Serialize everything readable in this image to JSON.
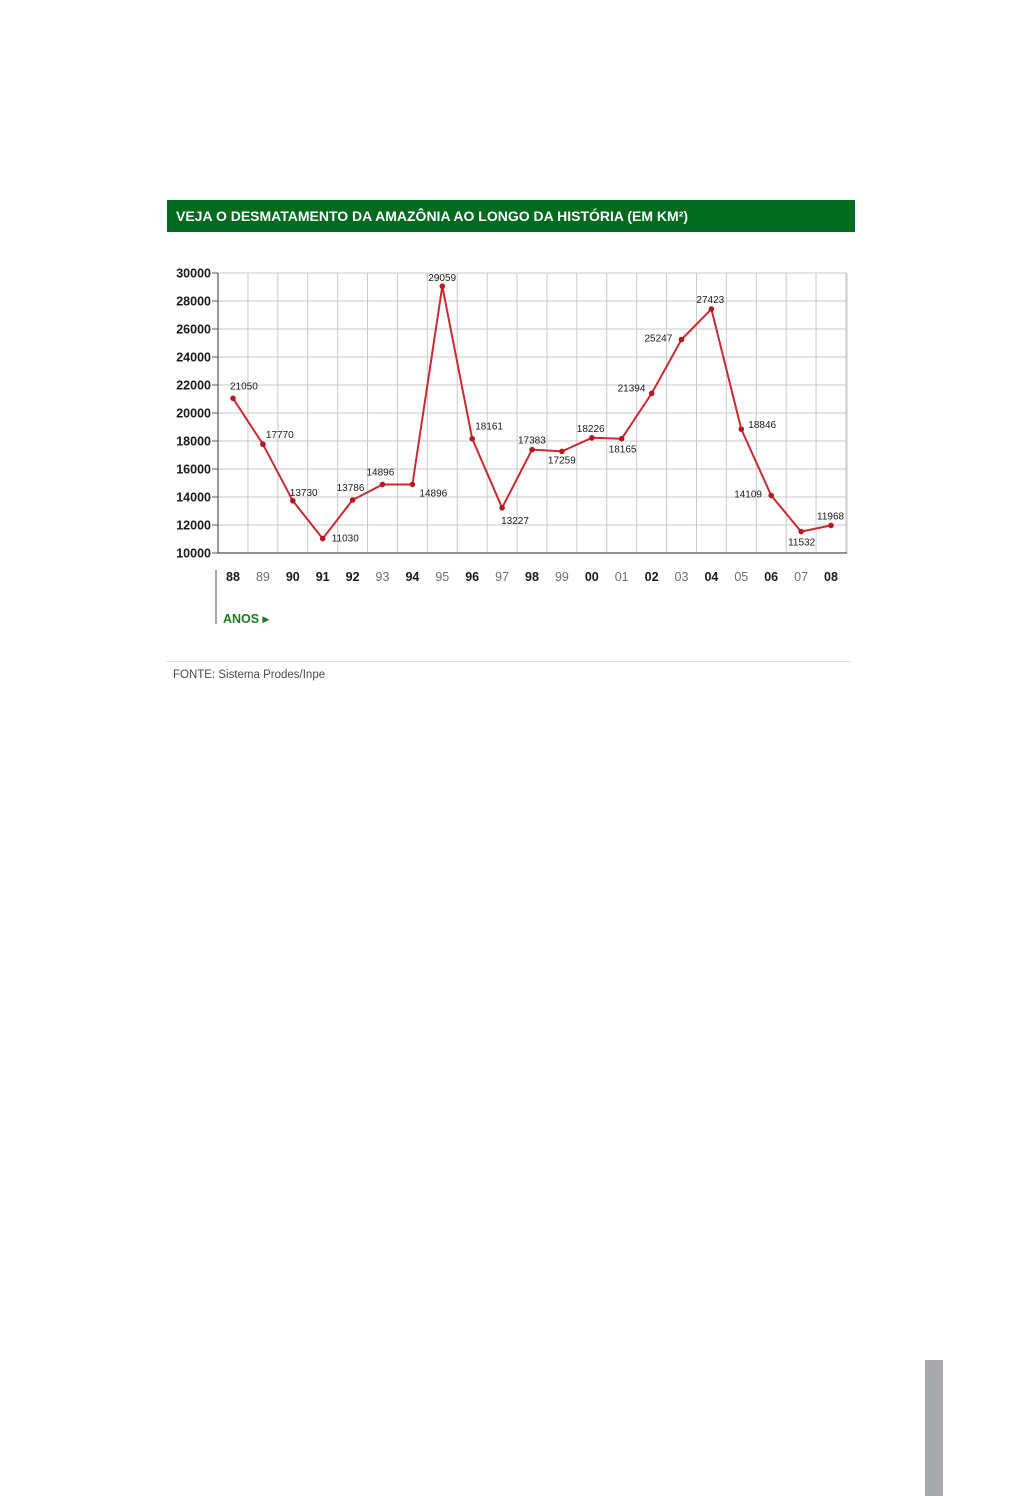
{
  "title": "VEJA O DESMATAMENTO DA AMAZÔNIA AO LONGO DA HISTÓRIA (EM KM²)",
  "source": "FONTE: Sistema Prodes/Inpe",
  "chart_data": {
    "type": "line",
    "title": "VEJA O DESMATAMENTO DA AMAZÔNIA AO LONGO DA HISTÓRIA (EM KM²)",
    "xlabel": "ANOS ▸",
    "ylabel": "",
    "categories": [
      "88",
      "89",
      "90",
      "91",
      "92",
      "93",
      "94",
      "95",
      "96",
      "97",
      "98",
      "99",
      "00",
      "01",
      "02",
      "03",
      "04",
      "05",
      "06",
      "07",
      "08"
    ],
    "values": [
      21050,
      17770,
      13730,
      11030,
      13786,
      14896,
      14896,
      29059,
      18161,
      13227,
      17383,
      17259,
      18226,
      18165,
      21394,
      25247,
      27423,
      18846,
      14109,
      11532,
      11968
    ],
    "data_labels": [
      "21050",
      "17770",
      "13730",
      "11030",
      "13786",
      "14896",
      "14896",
      "29059",
      "18161",
      "13227",
      "17383",
      "17259",
      "18226",
      "18165",
      "21394",
      "25247",
      "27423",
      "18846",
      "14109",
      "11532",
      "11968"
    ],
    "bold_categories": [
      "88",
      "90",
      "91",
      "92",
      "94",
      "96",
      "98",
      "00",
      "02",
      "04",
      "06",
      "08"
    ],
    "yticks": [
      10000,
      12000,
      14000,
      16000,
      18000,
      20000,
      22000,
      24000,
      26000,
      28000,
      30000
    ],
    "ytick_labels": [
      "10000",
      "12000",
      "14000",
      "16000",
      "18000",
      "20000",
      "22000",
      "24000",
      "26000",
      "28000",
      "30000"
    ],
    "ylim": [
      10000,
      30000
    ],
    "grid": true,
    "line_color": "#cc2a2f",
    "marker_color": "#b3191f",
    "title_bar_color": "#006b1e",
    "xlabel_color": "#1e7a1e"
  }
}
